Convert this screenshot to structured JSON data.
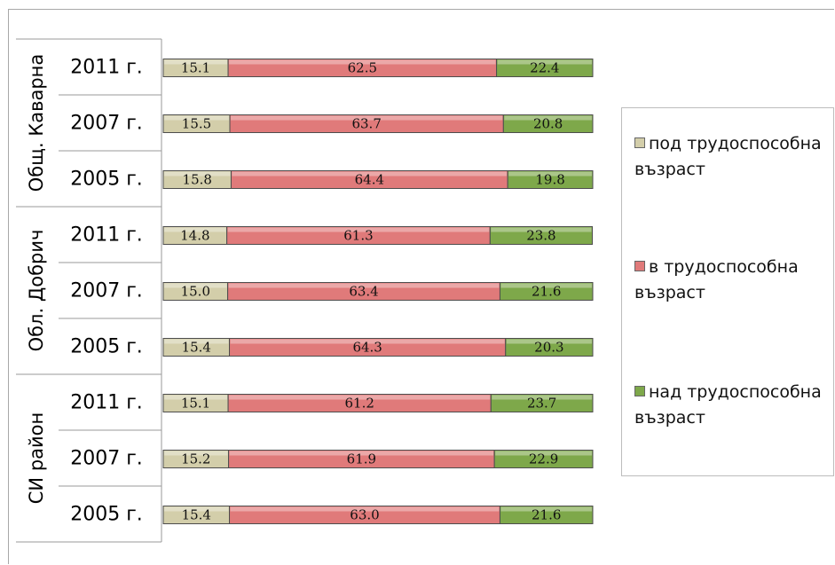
{
  "chart_data": {
    "type": "bar",
    "orientation": "horizontal",
    "stacked": true,
    "groups": [
      {
        "name": "Общ. Каварна",
        "categories": [
          "2011 г.",
          "2007 г.",
          "2005 г."
        ]
      },
      {
        "name": "Обл. Добрич",
        "categories": [
          "2011 г.",
          "2007 г.",
          "2005 г."
        ]
      },
      {
        "name": "СИ район",
        "categories": [
          "2011 г.",
          "2007 г.",
          "2005 г."
        ]
      }
    ],
    "series": [
      {
        "name": "под трудоспособна възраст",
        "color": "#d3ceaa",
        "values": [
          "15.1",
          "15.5",
          "15.8",
          "14.8",
          "15.0",
          "15.4",
          "15.1",
          "15.2",
          "15.4"
        ]
      },
      {
        "name": "в трудоспособна възраст",
        "color": "#e07a7a",
        "values": [
          "62.5",
          "63.7",
          "64.4",
          "61.3",
          "63.4",
          "64.3",
          "61.2",
          "61.9",
          "63.0"
        ]
      },
      {
        "name": "над трудоспособна възраст",
        "color": "#7ea84a",
        "values": [
          "22.4",
          "20.8",
          "19.8",
          "23.8",
          "21.6",
          "20.3",
          "23.7",
          "22.9",
          "21.6"
        ]
      }
    ],
    "xlim": [
      0,
      100
    ],
    "grid": false,
    "legend_position": "right"
  }
}
